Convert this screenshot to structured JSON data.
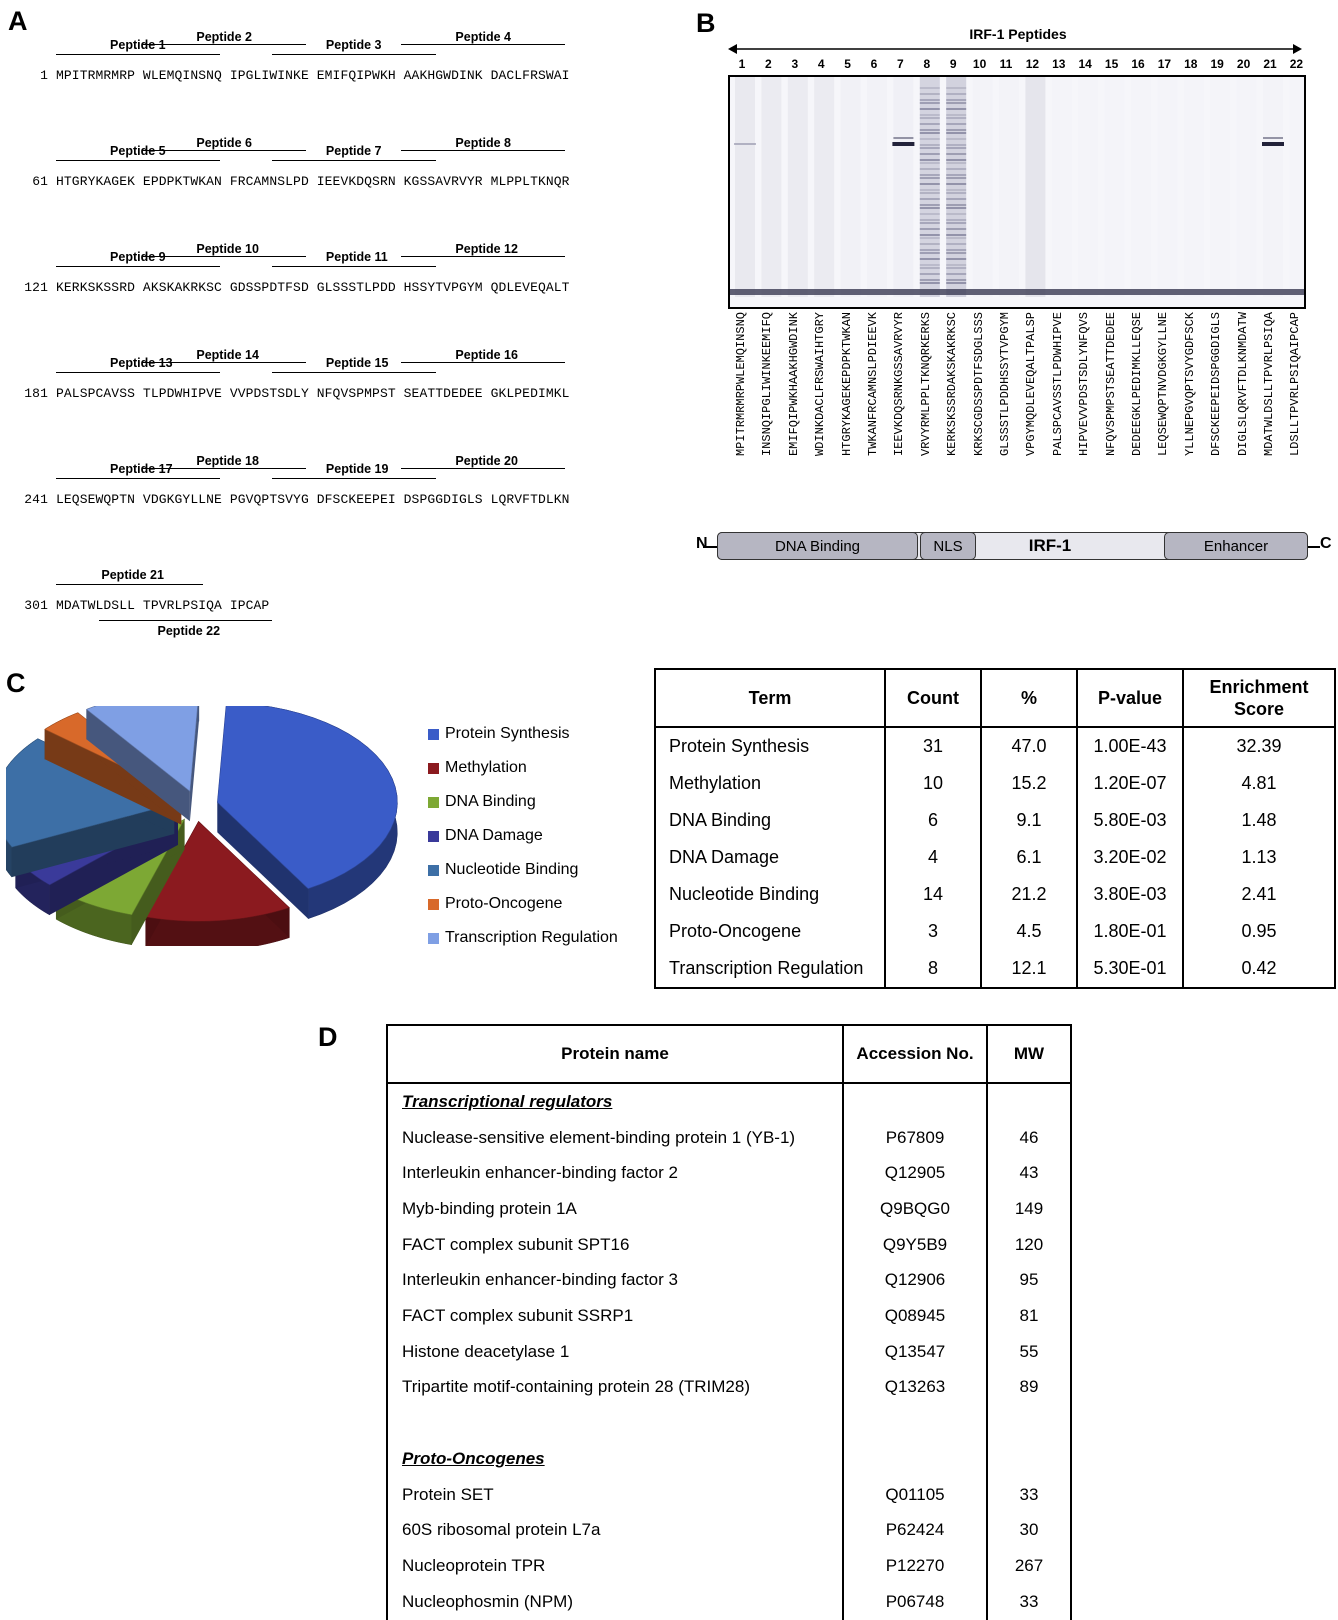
{
  "panels": {
    "a": "A",
    "b": "B",
    "c": "C",
    "d": "D"
  },
  "panel_a": {
    "rows": [
      {
        "start": "1",
        "sequence": "MPITRMRMRP WLEMQINSNQ IPGLIWINKE EMIFQIPWKH AAKHGWDINK DACLFRSWAI",
        "peptides": [
          "Peptide 1",
          "Peptide 2",
          "Peptide 3",
          "Peptide 4"
        ]
      },
      {
        "start": "61",
        "sequence": "HTGRYKAGEK EPDPKTWKAN FRCAMNSLPD IEEVKDQSRN KGSSAVRVYR MLPPLTKNQR",
        "peptides": [
          "Peptide 5",
          "Peptide 6",
          "Peptide 7",
          "Peptide 8"
        ]
      },
      {
        "start": "121",
        "sequence": "KERKSKSSRD AKSKAKRKSC GDSSPDTFSD GLSSSTLPDD HSSYTVPGYM QDLEVEQALT",
        "peptides": [
          "Peptide 9",
          "Peptide 10",
          "Peptide 11",
          "Peptide 12"
        ]
      },
      {
        "start": "181",
        "sequence": "PALSPCAVSS TLPDWHIPVE VVPDSTSDLY NFQVSPMPST SEATTDEDEE GKLPEDIMKL",
        "peptides": [
          "Peptide 13",
          "Peptide 14",
          "Peptide 15",
          "Peptide 16"
        ]
      },
      {
        "start": "241",
        "sequence": "LEQSEWQPTN VDGKGYLLNE PGVQPTSVYG DFSCKEEPEI DSPGGDIGLS LQRVFTDLKN",
        "peptides": [
          "Peptide 17",
          "Peptide 18",
          "Peptide 19",
          "Peptide 20"
        ]
      },
      {
        "start": "301",
        "sequence": "MDATWLDSLL TPVRLPSIQA IPCAP",
        "peptides": [
          "Peptide 21",
          "Peptide 22"
        ]
      }
    ]
  },
  "panel_b": {
    "title": "IRF-1 Peptides",
    "lanes": [
      "1",
      "2",
      "3",
      "4",
      "5",
      "6",
      "7",
      "8",
      "9",
      "10",
      "11",
      "12",
      "13",
      "14",
      "15",
      "16",
      "17",
      "18",
      "19",
      "20",
      "21",
      "22"
    ],
    "peptide_sequences": [
      "MPITRMRMRPWLEMQINSNQ",
      "INSNQIPGLIWINKEEMIFQ",
      "EMIFQIPWKHAAKHGWDINK",
      "WDINKDACLFRSWAIHTGRY",
      "HTGRYKAGEKEPDPKTWKAN",
      "TWKANFRCAMNSLPDIEEVK",
      "IEEVKDQSRNKGSSAVRVYR",
      "VRVYRMLPPLTKNQRKERKS",
      "KERKSKSSRDAKSKAKRKSC",
      "KRKSCGDSSPDTFSDGLSSS",
      "GLSSSTLPDDHSSYTVPGYM",
      "VPGYMQDLEVEQALTPALSP",
      "PALSPCAVSSTLPDWHIPVE",
      "HIPVEVVPDSTSDLYNFQVS",
      "NFQVSPMPSTSEATTDEDEE",
      "DEDEEGKLPEDIMKLLEQSE",
      "LEQSEWQPTNVDGKGYLLNE",
      "YLLNEPGVQPTSVYGDFSCK",
      "DFSCKEEPEIDSPGGDIGLS",
      "DIGLSLQRVFTDLKNMDATW",
      "MDATWLDSLLTPVRLPSIQA",
      "LDSLLTPVRLPSIQAIPCAP"
    ],
    "domain_n": "N",
    "domain_c": "C",
    "domains": {
      "dna_binding": "DNA Binding",
      "nls": "NLS",
      "irf1": "IRF-1",
      "enhancer": "Enhancer"
    }
  },
  "panel_c": {
    "chart_data": {
      "type": "pie",
      "categories": [
        "Protein Synthesis",
        "Methylation",
        "DNA Binding",
        "DNA Damage",
        "Nucleotide Binding",
        "Proto-Oncogene",
        "Transcription Regulation"
      ],
      "values": [
        31,
        10,
        6,
        4,
        14,
        3,
        8
      ],
      "colors": [
        "#3a5cc8",
        "#8b1a1f",
        "#7da834",
        "#3a3a9a",
        "#3d6fa6",
        "#d8692a",
        "#7f9fe4"
      ],
      "legend_position": "right"
    },
    "table": {
      "headers": [
        "Term",
        "Count",
        "%",
        "P-value",
        "Enrichment Score"
      ],
      "rows": [
        [
          "Protein Synthesis",
          "31",
          "47.0",
          "1.00E-43",
          "32.39"
        ],
        [
          "Methylation",
          "10",
          "15.2",
          "1.20E-07",
          "4.81"
        ],
        [
          "DNA Binding",
          "6",
          "9.1",
          "5.80E-03",
          "1.48"
        ],
        [
          "DNA Damage",
          "4",
          "6.1",
          "3.20E-02",
          "1.13"
        ],
        [
          "Nucleotide Binding",
          "14",
          "21.2",
          "3.80E-03",
          "2.41"
        ],
        [
          "Proto-Oncogene",
          "3",
          "4.5",
          "1.80E-01",
          "0.95"
        ],
        [
          "Transcription Regulation",
          "8",
          "12.1",
          "5.30E-01",
          "0.42"
        ]
      ]
    }
  },
  "panel_d": {
    "headers": [
      "Protein name",
      "Accession No.",
      "MW"
    ],
    "sections": [
      {
        "title": "Transcriptional regulators",
        "rows": [
          [
            "Nuclease-sensitive element-binding protein 1 (YB-1)",
            "P67809",
            "46"
          ],
          [
            "Interleukin enhancer-binding factor 2",
            "Q12905",
            "43"
          ],
          [
            "Myb-binding protein 1A",
            "Q9BQG0",
            "149"
          ],
          [
            "FACT complex subunit SPT16",
            "Q9Y5B9",
            "120"
          ],
          [
            "Interleukin enhancer-binding factor 3",
            "Q12906",
            "95"
          ],
          [
            "FACT complex subunit SSRP1",
            "Q08945",
            "81"
          ],
          [
            "Histone deacetylase 1",
            "Q13547",
            "55"
          ],
          [
            "Tripartite motif-containing protein 28 (TRIM28)",
            "Q13263",
            "89"
          ]
        ]
      },
      {
        "title": "Proto-Oncogenes",
        "rows": [
          [
            "Protein SET",
            "Q01105",
            "33"
          ],
          [
            "60S ribosomal protein L7a",
            "P62424",
            "30"
          ],
          [
            "Nucleoprotein TPR",
            "P12270",
            "267"
          ],
          [
            "Nucleophosmin (NPM)",
            "P06748",
            "33"
          ]
        ]
      }
    ]
  }
}
